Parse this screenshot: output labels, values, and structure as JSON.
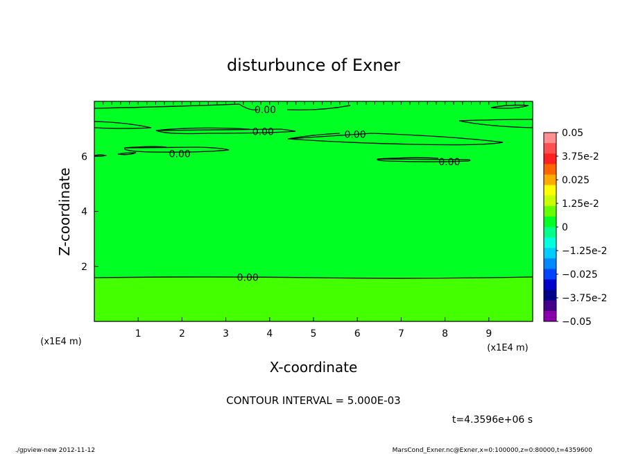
{
  "chart_data": {
    "type": "heatmap",
    "title": "disturbunce of Exner",
    "xlabel": "X-coordinate",
    "ylabel": "Z-coordinate",
    "x_unit": "(x1E4 m)",
    "x_unit_left": "(x1E4 m)",
    "xlim": [
      0,
      10
    ],
    "ylim": [
      0,
      8
    ],
    "x_ticks": [
      "1",
      "2",
      "3",
      "4",
      "5",
      "6",
      "7",
      "8",
      "9"
    ],
    "y_ticks": [
      "2",
      "4",
      "6"
    ],
    "contour_label": "0.00",
    "contour_interval_text": "CONTOUR INTERVAL = 5.000E-03",
    "time_text": "t=4.3596e+06 s",
    "colorbar": {
      "min": -0.05,
      "max": 0.05,
      "labels": [
        "0.05",
        "3.75e-2",
        "0.025",
        "1.25e-2",
        "0",
        "−1.25e-2",
        "−0.025",
        "−3.75e-2",
        "−0.05"
      ],
      "colors": [
        "#ff9090",
        "#ff5050",
        "#ff2020",
        "#ff6600",
        "#ffaa00",
        "#ffff00",
        "#c8ff00",
        "#66ff00",
        "#00ff22",
        "#00ff88",
        "#00ffdd",
        "#00ccff",
        "#0088ff",
        "#0044ff",
        "#0000cc",
        "#000088",
        "#440088",
        "#8800aa"
      ]
    },
    "regions": [
      {
        "z_range": [
          0,
          1.6
        ],
        "value": 0.0012,
        "color": "#44ff00"
      },
      {
        "z_range": [
          1.6,
          8
        ],
        "value": -0.0003,
        "color": "#00ff22"
      }
    ],
    "contour_labels": [
      {
        "x": 3.9,
        "z": 7.7,
        "text": "0.00"
      },
      {
        "x": 3.85,
        "z": 6.9,
        "text": "0.00"
      },
      {
        "x": 5.95,
        "z": 6.8,
        "text": "0.00"
      },
      {
        "x": 1.95,
        "z": 6.1,
        "text": "0.00"
      },
      {
        "x": 8.1,
        "z": 5.8,
        "text": "0.00"
      },
      {
        "x": 3.5,
        "z": 1.6,
        "text": "0.00"
      }
    ]
  },
  "footer": {
    "left": "./gpview-new  2012-11-12",
    "right": "MarsCond_Exner.nc@Exner,x=0:100000,z=0:80000,t=4359600"
  }
}
